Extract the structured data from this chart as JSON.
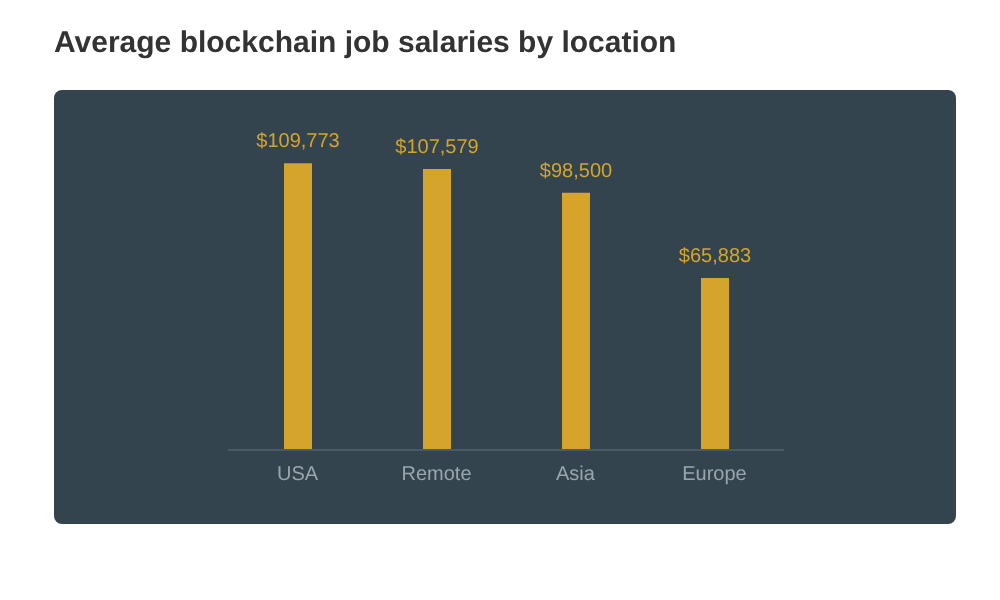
{
  "chart_data": {
    "type": "bar",
    "title": "Average blockchain job salaries by location",
    "categories": [
      "USA",
      "Remote",
      "Asia",
      "Europe"
    ],
    "values": [
      109773,
      107579,
      98500,
      65883
    ],
    "value_labels": [
      "$109,773",
      "$107,579",
      "$98,500",
      "$65,883"
    ],
    "color": "#d4a42c",
    "grid": false
  }
}
